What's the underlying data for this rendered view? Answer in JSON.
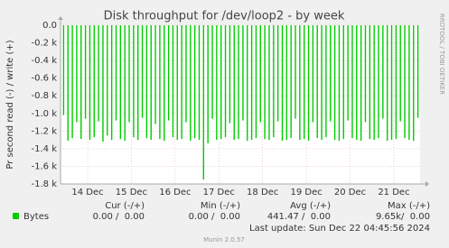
{
  "chart_data": {
    "type": "spike",
    "title": "Disk throughput for /dev/loop2 - by week",
    "y_label": "Pr second read (-) / write (+)",
    "side_label": "RRDTOOL / TOBI OETIKER",
    "ylim": [
      -1800,
      0
    ],
    "yticks": [
      {
        "value": 0,
        "label": "0.0"
      },
      {
        "value": -200,
        "label": "-0.2 k"
      },
      {
        "value": -400,
        "label": "-0.4 k"
      },
      {
        "value": -600,
        "label": "-0.6 k"
      },
      {
        "value": -800,
        "label": "-0.8 k"
      },
      {
        "value": -1000,
        "label": "-1.0 k"
      },
      {
        "value": -1200,
        "label": "-1.2 k"
      },
      {
        "value": -1400,
        "label": "-1.4 k"
      },
      {
        "value": -1600,
        "label": "-1.6 k"
      },
      {
        "value": -1800,
        "label": "-1.8 k"
      }
    ],
    "xlim": [
      13.38,
      21.6
    ],
    "xticks": [
      {
        "value": 14,
        "label": "14 Dec"
      },
      {
        "value": 15,
        "label": "15 Dec"
      },
      {
        "value": 16,
        "label": "16 Dec"
      },
      {
        "value": 17,
        "label": "17 Dec"
      },
      {
        "value": 18,
        "label": "18 Dec"
      },
      {
        "value": 19,
        "label": "19 Dec"
      },
      {
        "value": 20,
        "label": "20 Dec"
      },
      {
        "value": 21,
        "label": "21 Dec"
      }
    ],
    "grid": true,
    "x": [
      13.45,
      13.55,
      13.65,
      13.75,
      13.85,
      13.95,
      14.05,
      14.15,
      14.25,
      14.35,
      14.45,
      14.55,
      14.65,
      14.75,
      14.85,
      14.95,
      15.05,
      15.15,
      15.25,
      15.35,
      15.45,
      15.55,
      15.65,
      15.75,
      15.85,
      15.95,
      16.05,
      16.15,
      16.25,
      16.35,
      16.45,
      16.55,
      16.65,
      16.75,
      16.85,
      16.95,
      17.05,
      17.15,
      17.25,
      17.35,
      17.45,
      17.55,
      17.65,
      17.75,
      17.85,
      17.95,
      18.05,
      18.15,
      18.25,
      18.35,
      18.45,
      18.55,
      18.65,
      18.75,
      18.85,
      18.95,
      19.05,
      19.15,
      19.25,
      19.35,
      19.45,
      19.55,
      19.65,
      19.75,
      19.85,
      19.95,
      20.05,
      20.15,
      20.25,
      20.35,
      20.45,
      20.55,
      20.65,
      20.75,
      20.85,
      20.95,
      21.05,
      21.15,
      21.25,
      21.35,
      21.45,
      21.55
    ],
    "series": [
      {
        "name": "Bytes",
        "color": "#00cc00",
        "values": [
          -1020,
          -1310,
          -1280,
          -1100,
          -1290,
          -1060,
          -1300,
          -1270,
          -1090,
          -1320,
          -1250,
          -1300,
          -1080,
          -1290,
          -1310,
          -1100,
          -1270,
          -1300,
          -1050,
          -1280,
          -1300,
          -1120,
          -1290,
          -1310,
          -1080,
          -1270,
          -1300,
          -1290,
          -1100,
          -1310,
          -1280,
          -1300,
          -1750,
          -1340,
          -1060,
          -1300,
          -1290,
          -1270,
          -1110,
          -1300,
          -1290,
          -1080,
          -1310,
          -1300,
          -1280,
          -1100,
          -1290,
          -1300,
          -1270,
          -1090,
          -1310,
          -1300,
          -1280,
          -1060,
          -1300,
          -1290,
          -1310,
          -1100,
          -1280,
          -1300,
          -1270,
          -1090,
          -1300,
          -1310,
          -1290,
          -1080,
          -1280,
          -1300,
          -1310,
          -1100,
          -1290,
          -1300,
          -1280,
          -1060,
          -1310,
          -1300,
          -1290,
          -1090,
          -1280,
          -1300,
          -1310,
          -1050
        ]
      }
    ],
    "summary": {
      "headers": [
        "Cur (-/+)",
        "Min (-/+)",
        "Avg (-/+)",
        "Max (-/+)"
      ],
      "values": [
        "0.00 /  0.00",
        "0.00 /  0.00",
        "441.47 /  0.00",
        "9.65k/  0.00"
      ]
    },
    "last_update": "Last update: Sun Dec 22 04:45:56 2024",
    "footer": "Munin 2.0.57"
  }
}
